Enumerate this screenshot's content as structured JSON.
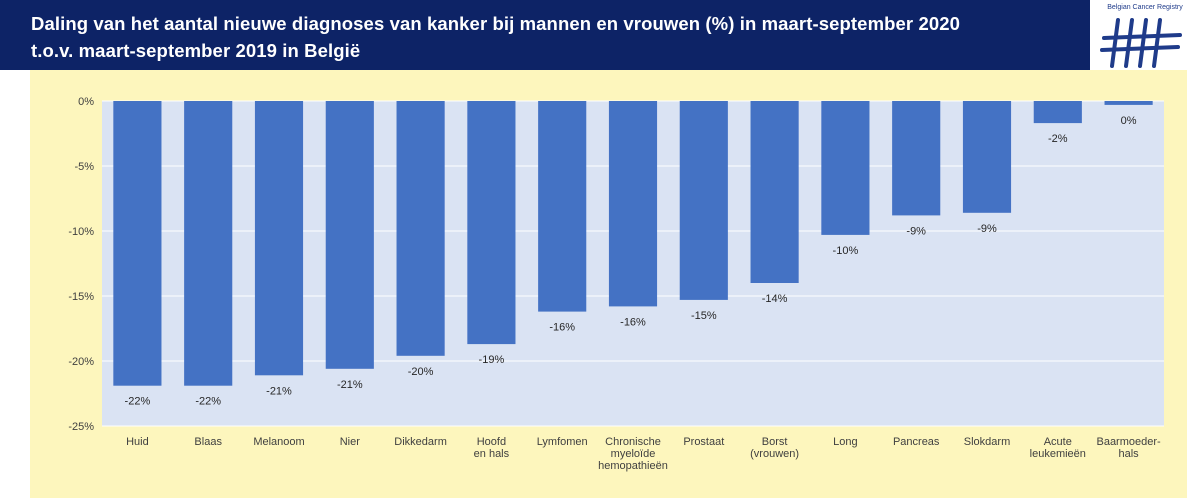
{
  "header": {
    "title_line1": "Daling van het aantal nieuwe diagnoses van kanker bij mannen en vrouwen (%) in maart-september 2020",
    "title_line2": "t.o.v. maart-september 2019 in België"
  },
  "logo": {
    "text": "Belgian Cancer Registry"
  },
  "colors": {
    "title_bg": "#0d2366",
    "bar": "#4472c4",
    "plot_bg": "#dae3f3",
    "chart_bg": "#fdf6bd"
  },
  "chart_data": {
    "type": "bar",
    "title": "Daling van het aantal nieuwe diagnoses van kanker bij mannen en vrouwen (%) in maart-september 2020 t.o.v. maart-september 2019 in België",
    "categories": [
      [
        "Huid"
      ],
      [
        "Blaas"
      ],
      [
        "Melanoom"
      ],
      [
        "Nier"
      ],
      [
        "Dikkedarm"
      ],
      [
        "Hoofd",
        "en hals"
      ],
      [
        "Lymfomen"
      ],
      [
        "Chronische",
        "myeloïde",
        "hemopathieën"
      ],
      [
        "Prostaat"
      ],
      [
        "Borst",
        "(vrouwen)"
      ],
      [
        "Long"
      ],
      [
        "Pancreas"
      ],
      [
        "Slokdarm"
      ],
      [
        "Acute",
        "leukemieën"
      ],
      [
        "Baarmoeder-",
        "hals"
      ]
    ],
    "values": [
      -22,
      -22,
      -21,
      -21,
      -20,
      -19,
      -16,
      -16,
      -15,
      -14,
      -10,
      -9,
      -9,
      -2,
      0
    ],
    "precise_values": [
      -21.9,
      -21.9,
      -21.1,
      -20.6,
      -19.6,
      -18.7,
      -16.2,
      -15.8,
      -15.3,
      -14.0,
      -10.3,
      -8.8,
      -8.6,
      -1.7,
      -0.3
    ],
    "data_labels": [
      "-22%",
      "-22%",
      "-21%",
      "-21%",
      "-20%",
      "-19%",
      "-16%",
      "-16%",
      "-15%",
      "-14%",
      "-10%",
      "-9%",
      "-9%",
      "-2%",
      "0%"
    ],
    "y_ticks": [
      0,
      -5,
      -10,
      -15,
      -20,
      -25
    ],
    "y_tick_labels": [
      "0%",
      "-5%",
      "-10%",
      "-15%",
      "-20%",
      "-25%"
    ],
    "ylim": [
      -25,
      0
    ],
    "grid": true,
    "legend": "none",
    "xlabel": "",
    "ylabel": ""
  }
}
